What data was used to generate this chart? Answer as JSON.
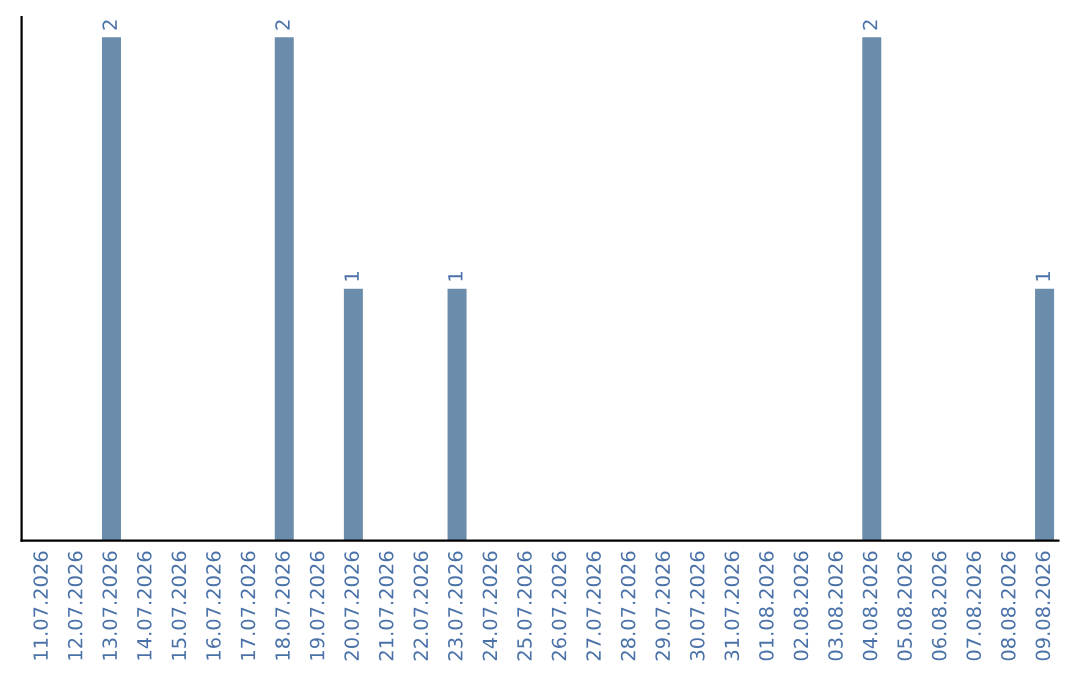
{
  "chart_data": {
    "type": "bar",
    "categories": [
      "11.07.2026",
      "12.07.2026",
      "13.07.2026",
      "14.07.2026",
      "15.07.2026",
      "16.07.2026",
      "17.07.2026",
      "18.07.2026",
      "19.07.2026",
      "20.07.2026",
      "21.07.2026",
      "22.07.2026",
      "23.07.2026",
      "24.07.2026",
      "25.07.2026",
      "26.07.2026",
      "27.07.2026",
      "28.07.2026",
      "29.07.2026",
      "30.07.2026",
      "31.07.2026",
      "01.08.2026",
      "02.08.2026",
      "03.08.2026",
      "04.08.2026",
      "05.08.2026",
      "06.08.2026",
      "07.08.2026",
      "08.08.2026",
      "09.08.2026"
    ],
    "values": [
      null,
      null,
      2,
      null,
      null,
      null,
      null,
      2,
      null,
      1,
      null,
      null,
      1,
      null,
      null,
      null,
      null,
      null,
      null,
      null,
      null,
      null,
      null,
      null,
      2,
      null,
      null,
      null,
      null,
      1
    ],
    "color": "#6b8cab",
    "data_labels": true,
    "tick_labels": "x",
    "grid": false,
    "legend": false
  }
}
